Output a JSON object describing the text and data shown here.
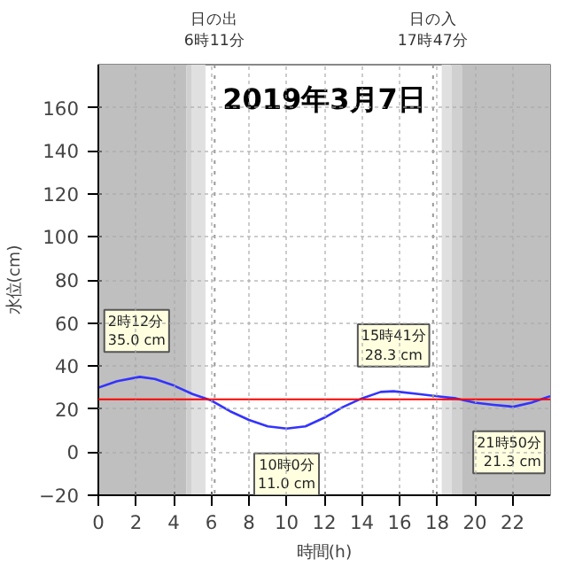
{
  "chart_data": {
    "type": "line",
    "title": "2019年3月7日",
    "xlabel": "時間(h)",
    "ylabel": "水位(cm)",
    "x": [
      0,
      1,
      2.2,
      3,
      4,
      5,
      6,
      7,
      8,
      9,
      10,
      11,
      12,
      13,
      14,
      15,
      15.68,
      16,
      17,
      18,
      19,
      20,
      21,
      21.83,
      22,
      23,
      24
    ],
    "series": [
      {
        "color": "#3333ff",
        "values": [
          30,
          33,
          35,
          34,
          31,
          27,
          24,
          19,
          15,
          12,
          11,
          12,
          16,
          21,
          25,
          28,
          28.3,
          28,
          27,
          26,
          25,
          23,
          22,
          21.3,
          21,
          23,
          26
        ]
      }
    ],
    "xlim": [
      0,
      24
    ],
    "ylim": [
      -20,
      180
    ],
    "xticks": [
      0,
      2,
      4,
      6,
      8,
      10,
      12,
      14,
      16,
      18,
      20,
      22
    ],
    "yticks": [
      -20,
      0,
      20,
      40,
      60,
      80,
      100,
      120,
      140,
      160
    ],
    "grid": true,
    "marker": "none",
    "line_style": "solid",
    "bands": [
      {
        "axis": "x",
        "from": 0,
        "to": 4.68,
        "color": "#bfbfbf"
      },
      {
        "axis": "x",
        "from": 4.68,
        "to": 4.94,
        "color": "#d0d0d0"
      },
      {
        "axis": "x",
        "from": 4.94,
        "to": 5.69,
        "color": "#e0e0e0"
      },
      {
        "axis": "x",
        "from": 18.24,
        "to": 18.76,
        "color": "#e0e0e0"
      },
      {
        "axis": "x",
        "from": 18.76,
        "to": 19.31,
        "color": "#d0d0d0"
      },
      {
        "axis": "x",
        "from": 19.31,
        "to": 24,
        "color": "#bfbfbf"
      }
    ],
    "ref_lines": [
      {
        "axis": "y",
        "value": 24.5,
        "color": "#ff0000",
        "line_style": "solid"
      },
      {
        "axis": "x",
        "value": 6.18,
        "label": "日の出\n6時11分",
        "color": "#999999",
        "line_style": "dotted"
      },
      {
        "axis": "x",
        "value": 17.78,
        "label": "日の入\n17時47分",
        "color": "#999999",
        "line_style": "dotted"
      }
    ],
    "annotations": [
      {
        "text": "2時12分\n35.0 cm",
        "x": 2.2,
        "y": 35.0
      },
      {
        "text": "10時0分\n11.0 cm",
        "x": 10,
        "y": 11.0
      },
      {
        "text": "15時41分\n28.3 cm",
        "x": 15.68,
        "y": 28.3
      },
      {
        "text": "21時50分\n21.3 cm",
        "x": 21.83,
        "y": 21.3
      }
    ]
  }
}
